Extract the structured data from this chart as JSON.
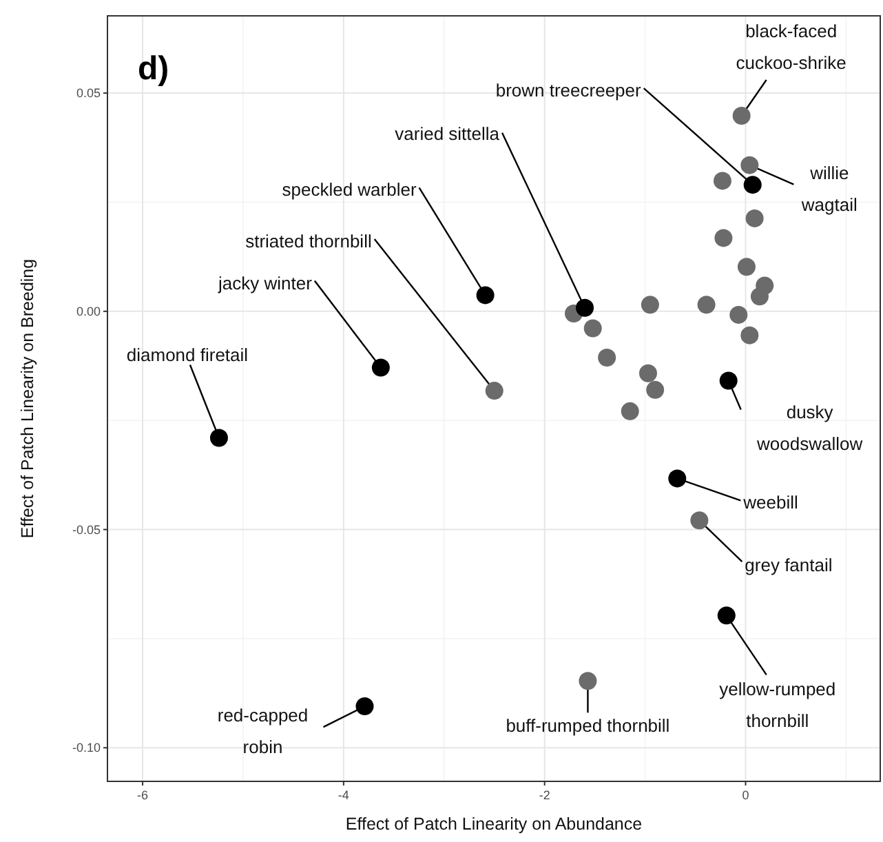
{
  "chart_data": {
    "type": "scatter",
    "title": "d)",
    "xlabel": "Effect of Patch Linearity on Abundance",
    "ylabel": "Effect of Patch Linearity on Breeding",
    "xlim": [
      -6.35,
      1.34
    ],
    "xticks": [
      -6,
      -4,
      -2,
      0
    ],
    "ylim": [
      -0.1077,
      0.0677
    ],
    "yticks": [
      {
        "value": -0.1,
        "label": "-0.10"
      },
      {
        "value": -0.05,
        "label": "-0.05"
      },
      {
        "value": 0,
        "label": "0.00"
      },
      {
        "value": 0.05,
        "label": "0.05"
      }
    ],
    "grid": true,
    "marker": "circle",
    "series": [
      {
        "color": "#6b6b6b",
        "x": [
          -0.04,
          0.04,
          -0.23,
          0.09,
          -0.22,
          0.01,
          0.19,
          0.14,
          -0.39,
          -0.95,
          -0.07,
          0.04,
          -1.71,
          -1.52,
          -1.38,
          -0.97,
          -0.9,
          -1.15,
          -2.5,
          -0.46,
          -1.57
        ],
        "values": [
          0.0448,
          0.0335,
          0.0299,
          0.0213,
          0.0168,
          0.0102,
          0.0059,
          0.0034,
          0.0015,
          0.0015,
          -0.0008,
          -0.0055,
          -0.0005,
          -0.0039,
          -0.0106,
          -0.0142,
          -0.018,
          -0.0229,
          -0.0182,
          -0.0479,
          -0.0847
        ]
      },
      {
        "color": "#000000",
        "x": [
          0.07,
          -2.59,
          -1.6,
          -3.63,
          -5.24,
          -0.17,
          -0.68,
          -0.19,
          -3.79
        ],
        "values": [
          0.029,
          0.0037,
          0.0008,
          -0.0129,
          -0.029,
          -0.0159,
          -0.0383,
          -0.0697,
          -0.0905
        ]
      }
    ],
    "annotations": [
      {
        "text": "black-faced\ncuckoo-shrike",
        "x": -0.04,
        "y": 0.0448
      },
      {
        "text": "brown treecreeper",
        "x": 0.07,
        "y": 0.029
      },
      {
        "text": "willie\nwagtail",
        "x": 0.04,
        "y": 0.0335
      },
      {
        "text": "varied sittella",
        "x": -1.6,
        "y": 0.0008
      },
      {
        "text": "speckled warbler",
        "x": -2.59,
        "y": 0.0037
      },
      {
        "text": "striated thornbill",
        "x": -2.5,
        "y": -0.0182
      },
      {
        "text": "jacky winter",
        "x": -3.63,
        "y": -0.0129
      },
      {
        "text": "diamond firetail",
        "x": -5.24,
        "y": -0.029
      },
      {
        "text": "dusky\nwoodswallow",
        "x": -0.17,
        "y": -0.0159
      },
      {
        "text": "weebill",
        "x": -0.68,
        "y": -0.0383
      },
      {
        "text": "grey fantail",
        "x": -0.46,
        "y": -0.0479
      },
      {
        "text": "yellow-rumped\nthornbill",
        "x": -0.19,
        "y": -0.0697
      },
      {
        "text": "buff-rumped thornbill",
        "x": -1.57,
        "y": -0.0847
      },
      {
        "text": "red-capped\nrobin",
        "x": -3.79,
        "y": -0.0905
      }
    ]
  }
}
